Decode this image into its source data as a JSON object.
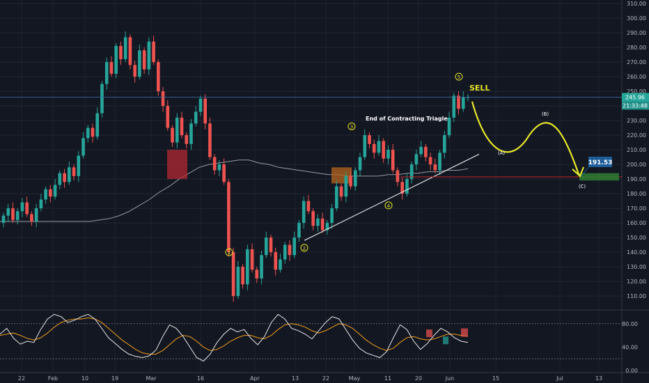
{
  "chart_data": {
    "type": "candlestick",
    "price_axis": {
      "ticks": [
        "310.00",
        "300.00",
        "290.00",
        "280.00",
        "270.00",
        "260.00",
        "250.00",
        "240.00",
        "230.00",
        "220.00",
        "210.00",
        "200.00",
        "190.00",
        "180.00",
        "170.00",
        "160.00",
        "150.00",
        "140.00",
        "130.00",
        "120.00",
        "110.00"
      ],
      "range": [
        101,
        311
      ]
    },
    "time_axis": {
      "labels": [
        "22",
        "Feb",
        "10",
        "19",
        "Mar",
        "16",
        "Apr",
        "13",
        "22",
        "May",
        "11",
        "20",
        "Jun",
        "15",
        "Jul",
        "13"
      ]
    },
    "price_labels": {
      "last_price": "245.96",
      "countdown": "21:33:48"
    },
    "candles": [
      [
        160,
        165
      ],
      [
        165,
        170
      ],
      [
        170,
        162
      ],
      [
        162,
        168
      ],
      [
        168,
        174
      ],
      [
        174,
        166
      ],
      [
        166,
        161
      ],
      [
        161,
        170
      ],
      [
        170,
        176
      ],
      [
        176,
        183
      ],
      [
        183,
        178
      ],
      [
        178,
        186
      ],
      [
        186,
        194
      ],
      [
        194,
        188
      ],
      [
        188,
        198
      ],
      [
        198,
        192
      ],
      [
        192,
        206
      ],
      [
        206,
        218
      ],
      [
        218,
        225
      ],
      [
        225,
        219
      ],
      [
        219,
        235
      ],
      [
        235,
        255
      ],
      [
        255,
        270
      ],
      [
        270,
        262
      ],
      [
        262,
        281
      ],
      [
        281,
        272
      ],
      [
        272,
        287
      ],
      [
        287,
        268
      ],
      [
        268,
        260
      ],
      [
        260,
        278
      ],
      [
        278,
        265
      ],
      [
        265,
        284
      ],
      [
        284,
        270
      ],
      [
        270,
        250
      ],
      [
        250,
        240
      ],
      [
        240,
        225
      ],
      [
        225,
        215
      ],
      [
        215,
        232
      ],
      [
        232,
        220
      ],
      [
        220,
        214
      ],
      [
        214,
        228
      ],
      [
        228,
        236
      ],
      [
        236,
        245
      ],
      [
        245,
        228
      ],
      [
        228,
        205
      ],
      [
        205,
        196
      ],
      [
        196,
        200
      ],
      [
        200,
        188
      ],
      [
        188,
        140
      ],
      [
        140,
        110
      ],
      [
        110,
        130
      ],
      [
        130,
        118
      ],
      [
        118,
        142
      ],
      [
        142,
        128
      ],
      [
        128,
        122
      ],
      [
        122,
        138
      ],
      [
        138,
        150
      ],
      [
        150,
        140
      ],
      [
        140,
        128
      ],
      [
        128,
        135
      ],
      [
        135,
        145
      ],
      [
        145,
        138
      ],
      [
        138,
        150
      ],
      [
        150,
        160
      ],
      [
        160,
        175
      ],
      [
        175,
        168
      ],
      [
        168,
        158
      ],
      [
        158,
        163
      ],
      [
        163,
        155
      ],
      [
        155,
        160
      ],
      [
        160,
        170
      ],
      [
        170,
        185
      ],
      [
        185,
        178
      ],
      [
        178,
        192
      ],
      [
        192,
        185
      ],
      [
        185,
        196
      ],
      [
        196,
        205
      ],
      [
        205,
        220
      ],
      [
        220,
        214
      ],
      [
        214,
        208
      ],
      [
        208,
        216
      ],
      [
        216,
        204
      ],
      [
        204,
        210
      ],
      [
        210,
        196
      ],
      [
        196,
        188
      ],
      [
        188,
        180
      ],
      [
        180,
        190
      ],
      [
        190,
        200
      ],
      [
        200,
        207
      ],
      [
        207,
        212
      ],
      [
        212,
        205
      ],
      [
        205,
        200
      ],
      [
        200,
        196
      ],
      [
        196,
        208
      ],
      [
        208,
        220
      ],
      [
        220,
        232
      ],
      [
        232,
        247
      ],
      [
        247,
        238
      ],
      [
        238,
        246
      ],
      [
        246,
        246
      ]
    ],
    "moving_average": [
      161,
      161,
      161,
      161,
      161,
      161,
      161,
      161,
      161,
      161,
      162,
      163,
      165,
      168,
      172,
      176,
      181,
      185,
      190,
      194,
      198,
      200,
      201,
      202,
      203,
      203,
      201,
      200,
      198,
      197,
      196,
      195,
      194,
      193,
      193,
      192,
      192,
      192,
      192,
      193,
      193,
      194,
      194,
      195,
      195,
      196,
      196,
      197
    ],
    "annotations": {
      "wave_labels": [
        "1",
        "2",
        "3",
        "4",
        "5"
      ],
      "title_text": "End of Contracting Triagle",
      "signal": "SELL",
      "projection_labels": [
        "(A)",
        "(B)",
        "(C)"
      ],
      "target_label": "191.53",
      "target_price": 191.53
    },
    "oscillator": {
      "ticks": [
        "80.00",
        "40.00",
        "0.00"
      ],
      "range": [
        0,
        100
      ],
      "main": [
        62,
        72,
        55,
        45,
        50,
        48,
        70,
        88,
        96,
        92,
        82,
        86,
        92,
        96,
        88,
        72,
        56,
        46,
        36,
        28,
        24,
        22,
        25,
        35,
        58,
        78,
        72,
        58,
        40,
        22,
        16,
        28,
        48,
        62,
        72,
        66,
        70,
        55,
        44,
        58,
        82,
        96,
        88,
        72,
        68,
        62,
        54,
        68,
        82,
        92,
        88,
        70,
        52,
        38,
        30,
        26,
        22,
        32,
        56,
        78,
        70,
        50,
        36,
        46,
        60,
        72,
        66,
        56,
        50,
        48
      ],
      "signal": [
        60,
        62,
        64,
        60,
        55,
        52,
        56,
        64,
        74,
        82,
        86,
        88,
        88,
        90,
        88,
        82,
        72,
        62,
        52,
        44,
        36,
        30,
        28,
        28,
        34,
        44,
        54,
        60,
        58,
        50,
        40,
        34,
        36,
        42,
        50,
        56,
        60,
        60,
        56,
        54,
        60,
        70,
        78,
        80,
        78,
        74,
        68,
        64,
        68,
        74,
        80,
        78,
        72,
        62,
        52,
        44,
        38,
        34,
        38,
        48,
        56,
        58,
        54,
        52,
        54,
        58,
        62,
        62,
        60,
        58
      ]
    }
  }
}
